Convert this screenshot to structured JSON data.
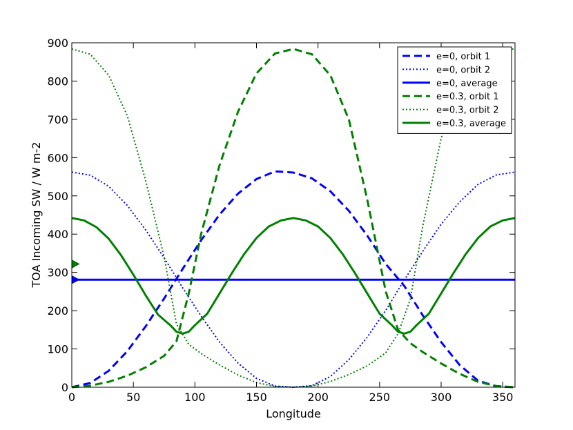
{
  "chart_data": {
    "type": "line",
    "title": "",
    "xlabel": "Longitude",
    "ylabel": "TOA Incoming SW / W m-2",
    "xlim": [
      0,
      360
    ],
    "ylim": [
      0,
      900
    ],
    "xticks": [
      0,
      50,
      100,
      150,
      200,
      250,
      300,
      350
    ],
    "yticks": [
      0,
      100,
      200,
      300,
      400,
      500,
      600,
      700,
      800,
      900
    ],
    "grid": false,
    "legend_position": "top-right",
    "series": [
      {
        "name": "e=0, orbit 1",
        "color": "#0000ff",
        "style": "dashed",
        "x": [
          0,
          15,
          30,
          45,
          60,
          75,
          90,
          105,
          120,
          135,
          150,
          165,
          180,
          195,
          210,
          225,
          240,
          255,
          270,
          285,
          300,
          315,
          330,
          345,
          360
        ],
        "y": [
          0,
          11,
          43,
          94,
          159,
          232,
          309,
          384,
          451,
          506,
          544,
          564,
          561,
          546,
          512,
          461,
          396,
          322,
          265,
          188,
          118,
          58,
          17,
          2,
          0
        ]
      },
      {
        "name": "e=0, orbit 2",
        "color": "#0000ff",
        "style": "dotted",
        "x": [
          0,
          15,
          30,
          45,
          60,
          75,
          90,
          105,
          120,
          135,
          150,
          165,
          180,
          195,
          210,
          225,
          240,
          255,
          270,
          285,
          300,
          315,
          330,
          345,
          360
        ],
        "y": [
          562,
          554,
          525,
          475,
          411,
          338,
          260,
          186,
          118,
          63,
          23,
          3,
          0,
          4,
          28,
          72,
          131,
          201,
          280,
          355,
          426,
          484,
          530,
          555,
          562
        ]
      },
      {
        "name": "e=0, average",
        "color": "#0000ff",
        "style": "solid",
        "x": [
          0,
          360
        ],
        "y": [
          281,
          281
        ]
      },
      {
        "name": "e=0.3, orbit 1",
        "color": "#008000",
        "style": "dashed",
        "x": [
          0,
          15,
          30,
          45,
          60,
          75,
          85,
          95,
          105,
          120,
          135,
          150,
          165,
          180,
          195,
          210,
          225,
          240,
          255,
          265,
          275,
          285,
          300,
          315,
          330,
          345,
          360
        ],
        "y": [
          0,
          4,
          14,
          30,
          52,
          82,
          120,
          245,
          400,
          580,
          720,
          820,
          872,
          884,
          870,
          815,
          700,
          490,
          250,
          150,
          115,
          92,
          62,
          35,
          14,
          3,
          0
        ]
      },
      {
        "name": "e=0.3, orbit 2",
        "color": "#008000",
        "style": "dotted",
        "x": [
          0,
          15,
          30,
          45,
          60,
          75,
          85,
          95,
          105,
          120,
          135,
          150,
          165,
          180,
          195,
          210,
          225,
          240,
          255,
          265,
          275,
          285,
          300,
          315,
          330,
          345,
          360
        ],
        "y": [
          884,
          870,
          815,
          710,
          540,
          340,
          165,
          112,
          88,
          58,
          32,
          12,
          2,
          0,
          3,
          15,
          33,
          56,
          90,
          140,
          230,
          420,
          650,
          800,
          860,
          882,
          884
        ]
      },
      {
        "name": "e=0.3, average",
        "color": "#008000",
        "style": "solid",
        "x": [
          0,
          10,
          20,
          30,
          40,
          50,
          60,
          70,
          80,
          85,
          90,
          95,
          100,
          110,
          120,
          130,
          140,
          150,
          160,
          170,
          180,
          190,
          200,
          210,
          220,
          230,
          240,
          250,
          260,
          265,
          270,
          275,
          280,
          290,
          300,
          310,
          320,
          330,
          340,
          350,
          360
        ],
        "y": [
          442,
          436,
          418,
          388,
          345,
          294,
          240,
          190,
          162,
          145,
          140,
          145,
          162,
          192,
          245,
          298,
          348,
          390,
          420,
          436,
          442,
          436,
          420,
          390,
          348,
          298,
          245,
          192,
          162,
          145,
          140,
          145,
          162,
          192,
          245,
          298,
          348,
          390,
          420,
          436,
          442
        ]
      }
    ],
    "markers": [
      {
        "color": "#008000",
        "y": 322
      },
      {
        "color": "#0000ff",
        "y": 281
      }
    ]
  }
}
